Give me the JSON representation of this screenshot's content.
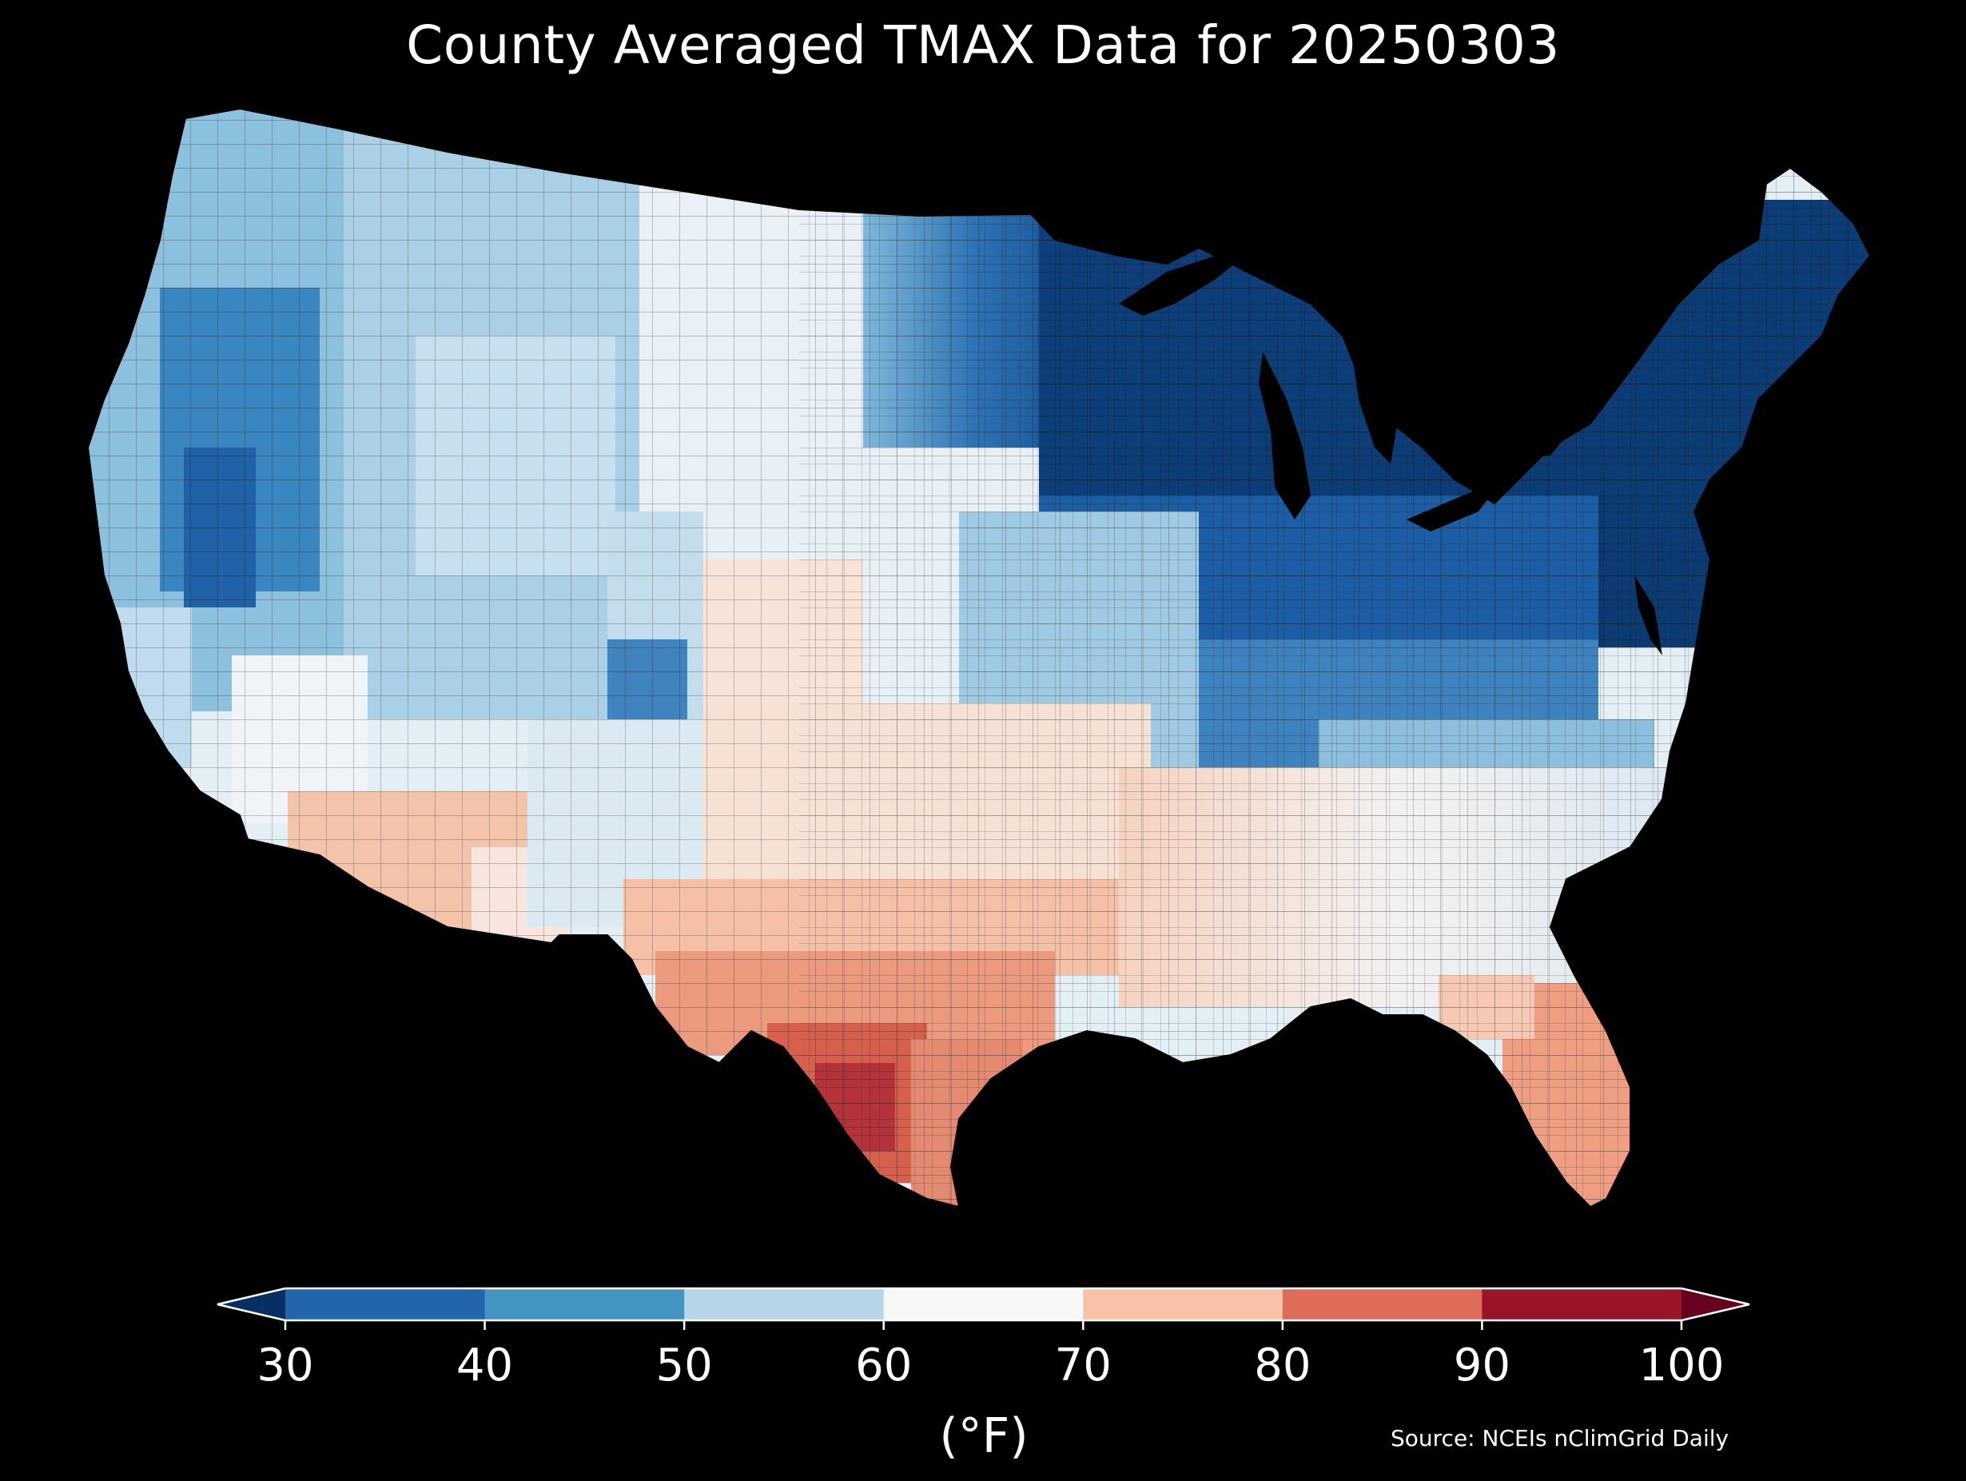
{
  "map": {
    "title": "County Averaged TMAX Data for 20250303",
    "source": "Source: NCEIs nClimGrid Daily",
    "units_label": "(°F)",
    "background": "#000000",
    "region": "Contiguous United States",
    "description_level": "county choropleth of daily maximum temperature",
    "regional_values_f": [
      {
        "region": "Northeast / New England",
        "tmax": 34
      },
      {
        "region": "Great Lakes / Upper Midwest",
        "tmax": 38
      },
      {
        "region": "Sierra Nevada (CA/NV)",
        "tmax": 38
      },
      {
        "region": "Oregon / Washington interior",
        "tmax": 45
      },
      {
        "region": "Mid-Atlantic / Appalachians",
        "tmax": 44
      },
      {
        "region": "Northern Plains",
        "tmax": 60
      },
      {
        "region": "Central Rockies",
        "tmax": 52
      },
      {
        "region": "Southeast",
        "tmax": 65
      },
      {
        "region": "Southern Plains",
        "tmax": 72
      },
      {
        "region": "Arizona desert",
        "tmax": 74
      },
      {
        "region": "Florida peninsula",
        "tmax": 80
      },
      {
        "region": "South Texas",
        "tmax": 87
      }
    ]
  },
  "colorbar": {
    "ticks": [
      "30",
      "40",
      "50",
      "60",
      "70",
      "80",
      "90",
      "100"
    ],
    "boundaries": [
      30,
      40,
      50,
      60,
      70,
      80,
      90,
      100
    ],
    "colors": [
      "#2166ac",
      "#4393c3",
      "#b5d5e8",
      "#f7f7f7",
      "#f9c1a5",
      "#df6b59",
      "#9a1427"
    ],
    "under_color": "#053061",
    "over_color": "#67001f",
    "extend": "both"
  }
}
